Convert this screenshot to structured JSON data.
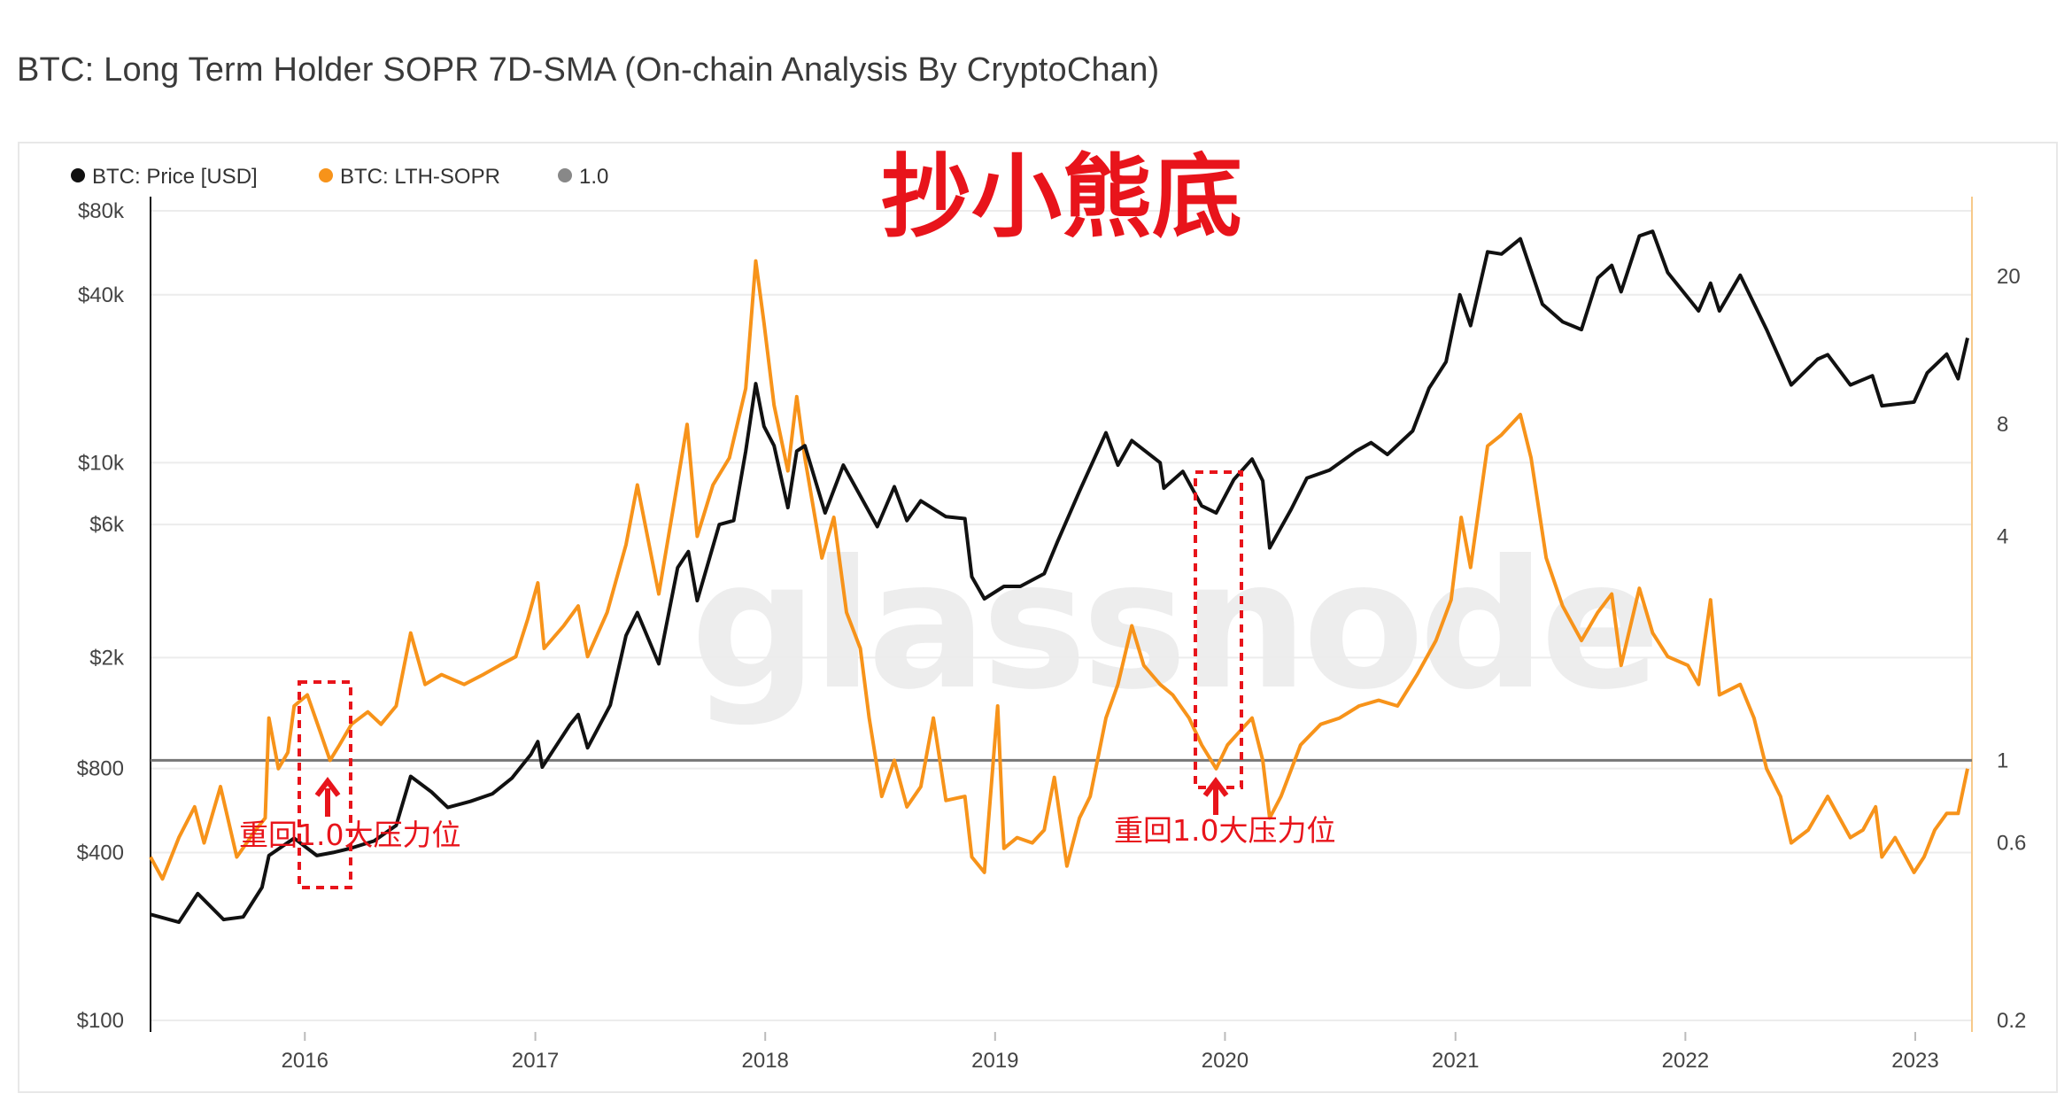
{
  "title": "BTC: Long Term Holder SOPR 7D-SMA (On-chain Analysis By CryptoChan)",
  "overlay_title": "抄小熊底",
  "watermark": "glassnode",
  "legend": [
    {
      "label": "BTC: Price [USD]",
      "color": "#111111"
    },
    {
      "label": "BTC: LTH-SOPR",
      "color": "#f7931a"
    },
    {
      "label": "1.0",
      "color": "#888888"
    }
  ],
  "annotations": [
    {
      "text": "重回1.0大压力位",
      "date": "2016-02-10"
    },
    {
      "text": "重回1.0大压力位",
      "date": "2019-12-20"
    }
  ],
  "chart_data": {
    "type": "line",
    "x_range": [
      "2015-05-01",
      "2023-04-01"
    ],
    "x_ticks": [
      "2016",
      "2017",
      "2018",
      "2019",
      "2020",
      "2021",
      "2022",
      "2023"
    ],
    "y_left": {
      "label": "",
      "scale": "log",
      "range": [
        100,
        80000
      ],
      "ticks": [
        {
          "v": 100,
          "t": "$100"
        },
        {
          "v": 400,
          "t": "$400"
        },
        {
          "v": 800,
          "t": "$800"
        },
        {
          "v": 2000,
          "t": "$2k"
        },
        {
          "v": 6000,
          "t": "$6k"
        },
        {
          "v": 10000,
          "t": "$10k"
        },
        {
          "v": 40000,
          "t": "$40k"
        },
        {
          "v": 80000,
          "t": "$80k"
        }
      ]
    },
    "y_right": {
      "label": "",
      "scale": "log",
      "range": [
        0.2,
        30
      ],
      "ticks": [
        {
          "v": 0.2,
          "t": "0.2"
        },
        {
          "v": 0.6,
          "t": "0.6"
        },
        {
          "v": 1,
          "t": "1"
        },
        {
          "v": 4,
          "t": "4"
        },
        {
          "v": 8,
          "t": "8"
        },
        {
          "v": 20,
          "t": "20"
        }
      ]
    },
    "reference_line": {
      "name": "1.0",
      "value": 1.0,
      "axis": "right"
    },
    "grid": "horizontal",
    "legend_position": "top-left",
    "series": [
      {
        "name": "BTC: Price [USD]",
        "axis": "left",
        "color": "#111111",
        "points": [
          [
            "2015-05-01",
            240
          ],
          [
            "2015-06-15",
            225
          ],
          [
            "2015-07-15",
            285
          ],
          [
            "2015-08-25",
            230
          ],
          [
            "2015-09-25",
            235
          ],
          [
            "2015-10-25",
            300
          ],
          [
            "2015-11-05",
            390
          ],
          [
            "2015-12-15",
            450
          ],
          [
            "2016-01-20",
            390
          ],
          [
            "2016-02-15",
            400
          ],
          [
            "2016-03-15",
            415
          ],
          [
            "2016-04-20",
            440
          ],
          [
            "2016-05-25",
            500
          ],
          [
            "2016-06-17",
            750
          ],
          [
            "2016-07-20",
            660
          ],
          [
            "2016-08-15",
            580
          ],
          [
            "2016-09-20",
            610
          ],
          [
            "2016-10-25",
            650
          ],
          [
            "2016-11-25",
            740
          ],
          [
            "2016-12-25",
            900
          ],
          [
            "2017-01-05",
            1000
          ],
          [
            "2017-01-12",
            810
          ],
          [
            "2017-02-25",
            1150
          ],
          [
            "2017-03-10",
            1250
          ],
          [
            "2017-03-25",
            950
          ],
          [
            "2017-04-30",
            1350
          ],
          [
            "2017-05-25",
            2400
          ],
          [
            "2017-06-12",
            2900
          ],
          [
            "2017-07-16",
            1900
          ],
          [
            "2017-08-15",
            4200
          ],
          [
            "2017-09-01",
            4800
          ],
          [
            "2017-09-15",
            3200
          ],
          [
            "2017-10-20",
            6000
          ],
          [
            "2017-11-12",
            6200
          ],
          [
            "2017-12-01",
            11000
          ],
          [
            "2017-12-17",
            19200
          ],
          [
            "2017-12-30",
            13500
          ],
          [
            "2018-01-15",
            11500
          ],
          [
            "2018-02-06",
            6900
          ],
          [
            "2018-02-20",
            11000
          ],
          [
            "2018-03-05",
            11500
          ],
          [
            "2018-04-06",
            6600
          ],
          [
            "2018-05-05",
            9800
          ],
          [
            "2018-06-28",
            5900
          ],
          [
            "2018-07-25",
            8200
          ],
          [
            "2018-08-14",
            6200
          ],
          [
            "2018-09-05",
            7300
          ],
          [
            "2018-10-15",
            6400
          ],
          [
            "2018-11-14",
            6300
          ],
          [
            "2018-11-25",
            3900
          ],
          [
            "2018-12-15",
            3250
          ],
          [
            "2019-01-15",
            3600
          ],
          [
            "2019-02-10",
            3600
          ],
          [
            "2019-03-20",
            4000
          ],
          [
            "2019-04-10",
            5200
          ],
          [
            "2019-05-15",
            7900
          ],
          [
            "2019-06-26",
            12800
          ],
          [
            "2019-07-15",
            9800
          ],
          [
            "2019-08-06",
            12000
          ],
          [
            "2019-09-20",
            10000
          ],
          [
            "2019-09-26",
            8100
          ],
          [
            "2019-10-26",
            9300
          ],
          [
            "2019-11-25",
            7000
          ],
          [
            "2019-12-18",
            6600
          ],
          [
            "2020-01-15",
            8700
          ],
          [
            "2020-02-13",
            10300
          ],
          [
            "2020-03-01",
            8600
          ],
          [
            "2020-03-12",
            4950
          ],
          [
            "2020-04-15",
            6800
          ],
          [
            "2020-05-10",
            8800
          ],
          [
            "2020-06-15",
            9400
          ],
          [
            "2020-07-27",
            11000
          ],
          [
            "2020-08-20",
            11800
          ],
          [
            "2020-09-15",
            10700
          ],
          [
            "2020-10-25",
            13000
          ],
          [
            "2020-11-20",
            18500
          ],
          [
            "2020-12-17",
            23000
          ],
          [
            "2021-01-08",
            40000
          ],
          [
            "2021-01-25",
            31000
          ],
          [
            "2021-02-21",
            57000
          ],
          [
            "2021-03-15",
            56000
          ],
          [
            "2021-04-14",
            63500
          ],
          [
            "2021-05-19",
            37000
          ],
          [
            "2021-06-20",
            32000
          ],
          [
            "2021-07-20",
            30000
          ],
          [
            "2021-08-15",
            46000
          ],
          [
            "2021-09-06",
            51000
          ],
          [
            "2021-09-21",
            41000
          ],
          [
            "2021-10-20",
            65000
          ],
          [
            "2021-11-10",
            67500
          ],
          [
            "2021-12-04",
            48000
          ],
          [
            "2022-01-22",
            35000
          ],
          [
            "2022-02-10",
            44000
          ],
          [
            "2022-02-24",
            35000
          ],
          [
            "2022-03-29",
            47000
          ],
          [
            "2022-05-10",
            30000
          ],
          [
            "2022-06-18",
            19000
          ],
          [
            "2022-07-30",
            23500
          ],
          [
            "2022-08-15",
            24400
          ],
          [
            "2022-09-20",
            19000
          ],
          [
            "2022-10-25",
            20500
          ],
          [
            "2022-11-09",
            16000
          ],
          [
            "2022-12-30",
            16500
          ],
          [
            "2023-01-20",
            21000
          ],
          [
            "2023-02-20",
            24500
          ],
          [
            "2023-03-10",
            20000
          ],
          [
            "2023-03-25",
            28000
          ]
        ]
      },
      {
        "name": "BTC: LTH-SOPR",
        "axis": "right",
        "color": "#f7931a",
        "points": [
          [
            "2015-05-01",
            0.55
          ],
          [
            "2015-05-20",
            0.48
          ],
          [
            "2015-06-15",
            0.62
          ],
          [
            "2015-07-10",
            0.75
          ],
          [
            "2015-07-25",
            0.6
          ],
          [
            "2015-08-20",
            0.85
          ],
          [
            "2015-09-15",
            0.55
          ],
          [
            "2015-10-15",
            0.65
          ],
          [
            "2015-10-30",
            0.7
          ],
          [
            "2015-11-05",
            1.3
          ],
          [
            "2015-11-20",
            0.95
          ],
          [
            "2015-12-05",
            1.05
          ],
          [
            "2015-12-15",
            1.4
          ],
          [
            "2016-01-05",
            1.5
          ],
          [
            "2016-01-25",
            1.2
          ],
          [
            "2016-02-10",
            1.0
          ],
          [
            "2016-02-25",
            1.1
          ],
          [
            "2016-03-15",
            1.25
          ],
          [
            "2016-04-10",
            1.35
          ],
          [
            "2016-05-01",
            1.25
          ],
          [
            "2016-05-25",
            1.4
          ],
          [
            "2016-06-17",
            2.2
          ],
          [
            "2016-07-10",
            1.6
          ],
          [
            "2016-08-05",
            1.7
          ],
          [
            "2016-09-10",
            1.6
          ],
          [
            "2016-10-10",
            1.7
          ],
          [
            "2016-11-05",
            1.8
          ],
          [
            "2016-12-01",
            1.9
          ],
          [
            "2016-12-20",
            2.4
          ],
          [
            "2017-01-05",
            3.0
          ],
          [
            "2017-01-15",
            2.0
          ],
          [
            "2017-02-15",
            2.3
          ],
          [
            "2017-03-10",
            2.6
          ],
          [
            "2017-03-25",
            1.9
          ],
          [
            "2017-04-25",
            2.5
          ],
          [
            "2017-05-25",
            3.8
          ],
          [
            "2017-06-12",
            5.5
          ],
          [
            "2017-07-16",
            2.8
          ],
          [
            "2017-08-10",
            5.0
          ],
          [
            "2017-08-30",
            8.0
          ],
          [
            "2017-09-15",
            4.0
          ],
          [
            "2017-10-10",
            5.5
          ],
          [
            "2017-11-05",
            6.5
          ],
          [
            "2017-12-01",
            10.0
          ],
          [
            "2017-12-17",
            22.0
          ],
          [
            "2017-12-30",
            15.0
          ],
          [
            "2018-01-15",
            9.0
          ],
          [
            "2018-02-06",
            6.0
          ],
          [
            "2018-02-20",
            9.5
          ],
          [
            "2018-03-05",
            6.5
          ],
          [
            "2018-04-01",
            3.5
          ],
          [
            "2018-04-20",
            4.5
          ],
          [
            "2018-05-10",
            2.5
          ],
          [
            "2018-06-01",
            2.0
          ],
          [
            "2018-06-15",
            1.3
          ],
          [
            "2018-07-05",
            0.8
          ],
          [
            "2018-07-25",
            1.0
          ],
          [
            "2018-08-14",
            0.75
          ],
          [
            "2018-09-05",
            0.85
          ],
          [
            "2018-09-25",
            1.3
          ],
          [
            "2018-10-15",
            0.78
          ],
          [
            "2018-11-14",
            0.8
          ],
          [
            "2018-11-25",
            0.55
          ],
          [
            "2018-12-15",
            0.5
          ],
          [
            "2019-01-05",
            1.4
          ],
          [
            "2019-01-15",
            0.58
          ],
          [
            "2019-02-05",
            0.62
          ],
          [
            "2019-03-01",
            0.6
          ],
          [
            "2019-03-20",
            0.65
          ],
          [
            "2019-04-05",
            0.9
          ],
          [
            "2019-04-25",
            0.52
          ],
          [
            "2019-05-15",
            0.7
          ],
          [
            "2019-06-01",
            0.8
          ],
          [
            "2019-06-26",
            1.3
          ],
          [
            "2019-07-15",
            1.6
          ],
          [
            "2019-08-06",
            2.3
          ],
          [
            "2019-08-25",
            1.8
          ],
          [
            "2019-09-20",
            1.6
          ],
          [
            "2019-10-10",
            1.5
          ],
          [
            "2019-11-05",
            1.3
          ],
          [
            "2019-11-25",
            1.1
          ],
          [
            "2019-12-18",
            0.95
          ],
          [
            "2020-01-05",
            1.1
          ],
          [
            "2020-01-25",
            1.2
          ],
          [
            "2020-02-13",
            1.3
          ],
          [
            "2020-03-01",
            1.0
          ],
          [
            "2020-03-12",
            0.7
          ],
          [
            "2020-03-30",
            0.8
          ],
          [
            "2020-04-30",
            1.1
          ],
          [
            "2020-06-01",
            1.25
          ],
          [
            "2020-07-01",
            1.3
          ],
          [
            "2020-08-01",
            1.4
          ],
          [
            "2020-09-01",
            1.45
          ],
          [
            "2020-10-01",
            1.4
          ],
          [
            "2020-11-01",
            1.7
          ],
          [
            "2020-12-01",
            2.1
          ],
          [
            "2020-12-25",
            2.7
          ],
          [
            "2021-01-10",
            4.5
          ],
          [
            "2021-01-25",
            3.3
          ],
          [
            "2021-02-21",
            7.0
          ],
          [
            "2021-03-15",
            7.5
          ],
          [
            "2021-04-14",
            8.5
          ],
          [
            "2021-05-01",
            6.5
          ],
          [
            "2021-05-25",
            3.5
          ],
          [
            "2021-06-20",
            2.6
          ],
          [
            "2021-07-20",
            2.1
          ],
          [
            "2021-08-15",
            2.5
          ],
          [
            "2021-09-06",
            2.8
          ],
          [
            "2021-09-21",
            1.8
          ],
          [
            "2021-10-20",
            2.9
          ],
          [
            "2021-11-10",
            2.2
          ],
          [
            "2021-12-04",
            1.9
          ],
          [
            "2022-01-05",
            1.8
          ],
          [
            "2022-01-22",
            1.6
          ],
          [
            "2022-02-10",
            2.7
          ],
          [
            "2022-02-24",
            1.5
          ],
          [
            "2022-03-29",
            1.6
          ],
          [
            "2022-04-20",
            1.3
          ],
          [
            "2022-05-10",
            0.95
          ],
          [
            "2022-06-01",
            0.8
          ],
          [
            "2022-06-18",
            0.6
          ],
          [
            "2022-07-15",
            0.65
          ],
          [
            "2022-08-15",
            0.8
          ],
          [
            "2022-09-20",
            0.62
          ],
          [
            "2022-10-10",
            0.65
          ],
          [
            "2022-10-30",
            0.75
          ],
          [
            "2022-11-09",
            0.55
          ],
          [
            "2022-11-30",
            0.62
          ],
          [
            "2022-12-30",
            0.5
          ],
          [
            "2023-01-15",
            0.55
          ],
          [
            "2023-02-01",
            0.65
          ],
          [
            "2023-02-20",
            0.72
          ],
          [
            "2023-03-10",
            0.72
          ],
          [
            "2023-03-25",
            0.95
          ]
        ]
      }
    ]
  }
}
